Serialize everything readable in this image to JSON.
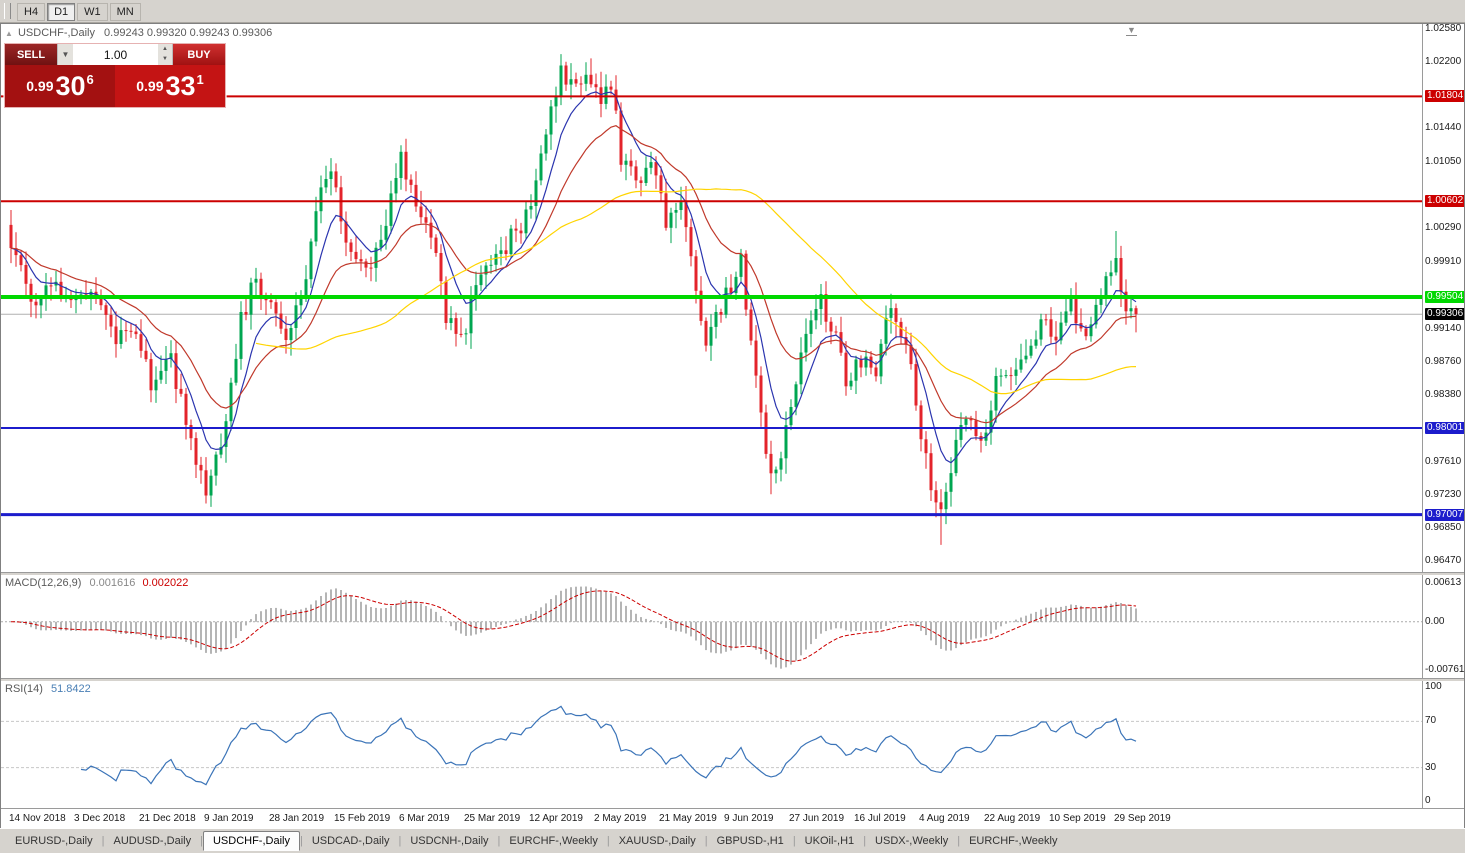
{
  "toolbar": {
    "timeframes": [
      {
        "label": "H4",
        "active": false
      },
      {
        "label": "D1",
        "active": true
      },
      {
        "label": "W1",
        "active": false
      },
      {
        "label": "MN",
        "active": false
      }
    ]
  },
  "icons": {
    "collapse_marker": "▲",
    "dropdown_arrow": "▼",
    "spin_up": "▲",
    "spin_down": "▼",
    "shift_marker": "▼"
  },
  "trade_panel": {
    "sell_label": "SELL",
    "buy_label": "BUY",
    "volume": "1.00",
    "sell_price": {
      "base": "0.99",
      "pips": "30",
      "frac": "6"
    },
    "buy_price": {
      "base": "0.99",
      "pips": "33",
      "frac": "1"
    }
  },
  "chart": {
    "title": "USDCHF-,Daily",
    "ohlc": "0.99243 0.99320 0.99243 0.99306",
    "price_max": 1.02635,
    "price_min": 0.96349,
    "axis_ticks": [
      "1.02580",
      "1.02200",
      "1.01440",
      "1.01050",
      "1.00290",
      "0.99910",
      "0.99140",
      "0.98760",
      "0.98380",
      "0.97610",
      "0.97230",
      "0.96850",
      "0.96470"
    ],
    "hlines": [
      {
        "price": 1.01804,
        "label": "1.01804",
        "color": "#cc0000",
        "width": 2
      },
      {
        "price": 1.00602,
        "label": "1.00602",
        "color": "#cc0000",
        "width": 2
      },
      {
        "price": 0.99504,
        "label": "0.99504",
        "color": "#00d800",
        "width": 4
      },
      {
        "price": 0.98001,
        "label": "0.98001",
        "color": "#1c1ccc",
        "width": 2
      },
      {
        "price": 0.97007,
        "label": "0.97007",
        "color": "#1c1ccc",
        "width": 3
      }
    ],
    "current_price": {
      "price": 0.99306,
      "label": "0.99306",
      "line_color": "#b0b0b0",
      "badge_bg": "#000000"
    },
    "candles": {
      "count": 226,
      "up_color": "#00a651",
      "down_color": "#e3242b",
      "anchors": [
        [
          0,
          1.0015
        ],
        [
          4,
          0.9945
        ],
        [
          8,
          0.9975
        ],
        [
          12,
          0.9935
        ],
        [
          16,
          0.9965
        ],
        [
          20,
          0.9905
        ],
        [
          24,
          0.9915
        ],
        [
          28,
          0.9855
        ],
        [
          32,
          0.9875
        ],
        [
          36,
          0.979
        ],
        [
          39,
          0.9725
        ],
        [
          42,
          0.978
        ],
        [
          46,
          0.9925
        ],
        [
          49,
          0.9975
        ],
        [
          52,
          0.9935
        ],
        [
          55,
          0.9905
        ],
        [
          58,
          0.9945
        ],
        [
          62,
          1.007
        ],
        [
          64,
          1.009
        ],
        [
          67,
          1.002
        ],
        [
          70,
          0.9985
        ],
        [
          73,
          1.0
        ],
        [
          76,
          1.006
        ],
        [
          78,
          1.011
        ],
        [
          81,
          1.006
        ],
        [
          84,
          1.003
        ],
        [
          87,
          0.993
        ],
        [
          90,
          0.99
        ],
        [
          93,
          0.996
        ],
        [
          96,
          0.999
        ],
        [
          99,
          1.001
        ],
        [
          102,
          1.0035
        ],
        [
          105,
          1.0075
        ],
        [
          108,
          1.016
        ],
        [
          110,
          1.021
        ],
        [
          113,
          1.0185
        ],
        [
          116,
          1.0205
        ],
        [
          118,
          1.018
        ],
        [
          120,
          1.0195
        ],
        [
          122,
          1.011
        ],
        [
          125,
          1.0085
        ],
        [
          128,
          1.0105
        ],
        [
          131,
          1.004
        ],
        [
          134,
          1.006
        ],
        [
          137,
          0.996
        ],
        [
          139,
          0.99
        ],
        [
          141,
          0.993
        ],
        [
          144,
          0.996
        ],
        [
          146,
          0.9995
        ],
        [
          149,
          0.985
        ],
        [
          152,
          0.974
        ],
        [
          154,
          0.977
        ],
        [
          157,
          0.986
        ],
        [
          160,
          0.993
        ],
        [
          162,
          0.9945
        ],
        [
          165,
          0.99
        ],
        [
          167,
          0.985
        ],
        [
          170,
          0.988
        ],
        [
          173,
          0.987
        ],
        [
          176,
          0.9945
        ],
        [
          179,
          0.99
        ],
        [
          182,
          0.979
        ],
        [
          184,
          0.974
        ],
        [
          186,
          0.97
        ],
        [
          188,
          0.976
        ],
        [
          191,
          0.981
        ],
        [
          194,
          0.978
        ],
        [
          197,
          0.985
        ],
        [
          200,
          0.987
        ],
        [
          203,
          0.989
        ],
        [
          206,
          0.992
        ],
        [
          209,
          0.991
        ],
        [
          212,
          0.994
        ],
        [
          215,
          0.9905
        ],
        [
          218,
          0.995
        ],
        [
          221,
          0.999
        ],
        [
          223,
          0.9945
        ],
        [
          225,
          0.99306
        ]
      ],
      "spike_highs": {
        "110": 1.0228,
        "116": 1.0224,
        "221": 1.0026
      },
      "spike_lows": {
        "39": 0.9717,
        "152": 0.9724,
        "186": 0.9666
      }
    },
    "moving_averages": [
      {
        "period": 8,
        "type": "ema",
        "color": "#2b35af"
      },
      {
        "period": 21,
        "type": "ema",
        "color": "#c0392b"
      },
      {
        "period": 50,
        "type": "sma",
        "color": "#ffd400"
      }
    ]
  },
  "macd": {
    "label": "MACD(12,26,9)",
    "value_main": "0.001616",
    "value_signal": "0.002022",
    "axis": [
      "0.00613",
      "0.00",
      "-0.00761"
    ],
    "axis_values": [
      0.00613,
      0,
      -0.00761
    ],
    "vmax": 0.0074,
    "vmin": -0.0089,
    "bar_color": "#b5b5b5",
    "signal_color": "#cc0000"
  },
  "rsi": {
    "label": "RSI(14)",
    "value": "51.8422",
    "axis": [
      "100",
      "70",
      "30",
      "0"
    ],
    "axis_values": [
      100,
      70,
      30,
      0
    ],
    "levels": [
      70,
      30
    ],
    "vmax": 105,
    "vmin": -5,
    "line_color": "#3b74b8"
  },
  "date_axis": {
    "step": 13,
    "labels": [
      "14 Nov 2018",
      "3 Dec 2018",
      "21 Dec 2018",
      "9 Jan 2019",
      "28 Jan 2019",
      "15 Feb 2019",
      "6 Mar 2019",
      "25 Mar 2019",
      "12 Apr 2019",
      "2 May 2019",
      "21 May 2019",
      "9 Jun 2019",
      "27 Jun 2019",
      "16 Jul 2019",
      "4 Aug 2019",
      "22 Aug 2019",
      "10 Sep 2019",
      "29 Sep 2019"
    ]
  },
  "tabs": [
    {
      "label": "EURUSD-,Daily",
      "active": false
    },
    {
      "label": "AUDUSD-,Daily",
      "active": false
    },
    {
      "label": "USDCHF-,Daily",
      "active": true
    },
    {
      "label": "USDCAD-,Daily",
      "active": false
    },
    {
      "label": "USDCNH-,Daily",
      "active": false
    },
    {
      "label": "EURCHF-,Weekly",
      "active": false
    },
    {
      "label": "XAUUSD-,Daily",
      "active": false
    },
    {
      "label": "GBPUSD-,H1",
      "active": false
    },
    {
      "label": "UKOil-,H1",
      "active": false
    },
    {
      "label": "USDX-,Weekly",
      "active": false
    },
    {
      "label": "EURCHF-,Weekly",
      "active": false
    }
  ]
}
